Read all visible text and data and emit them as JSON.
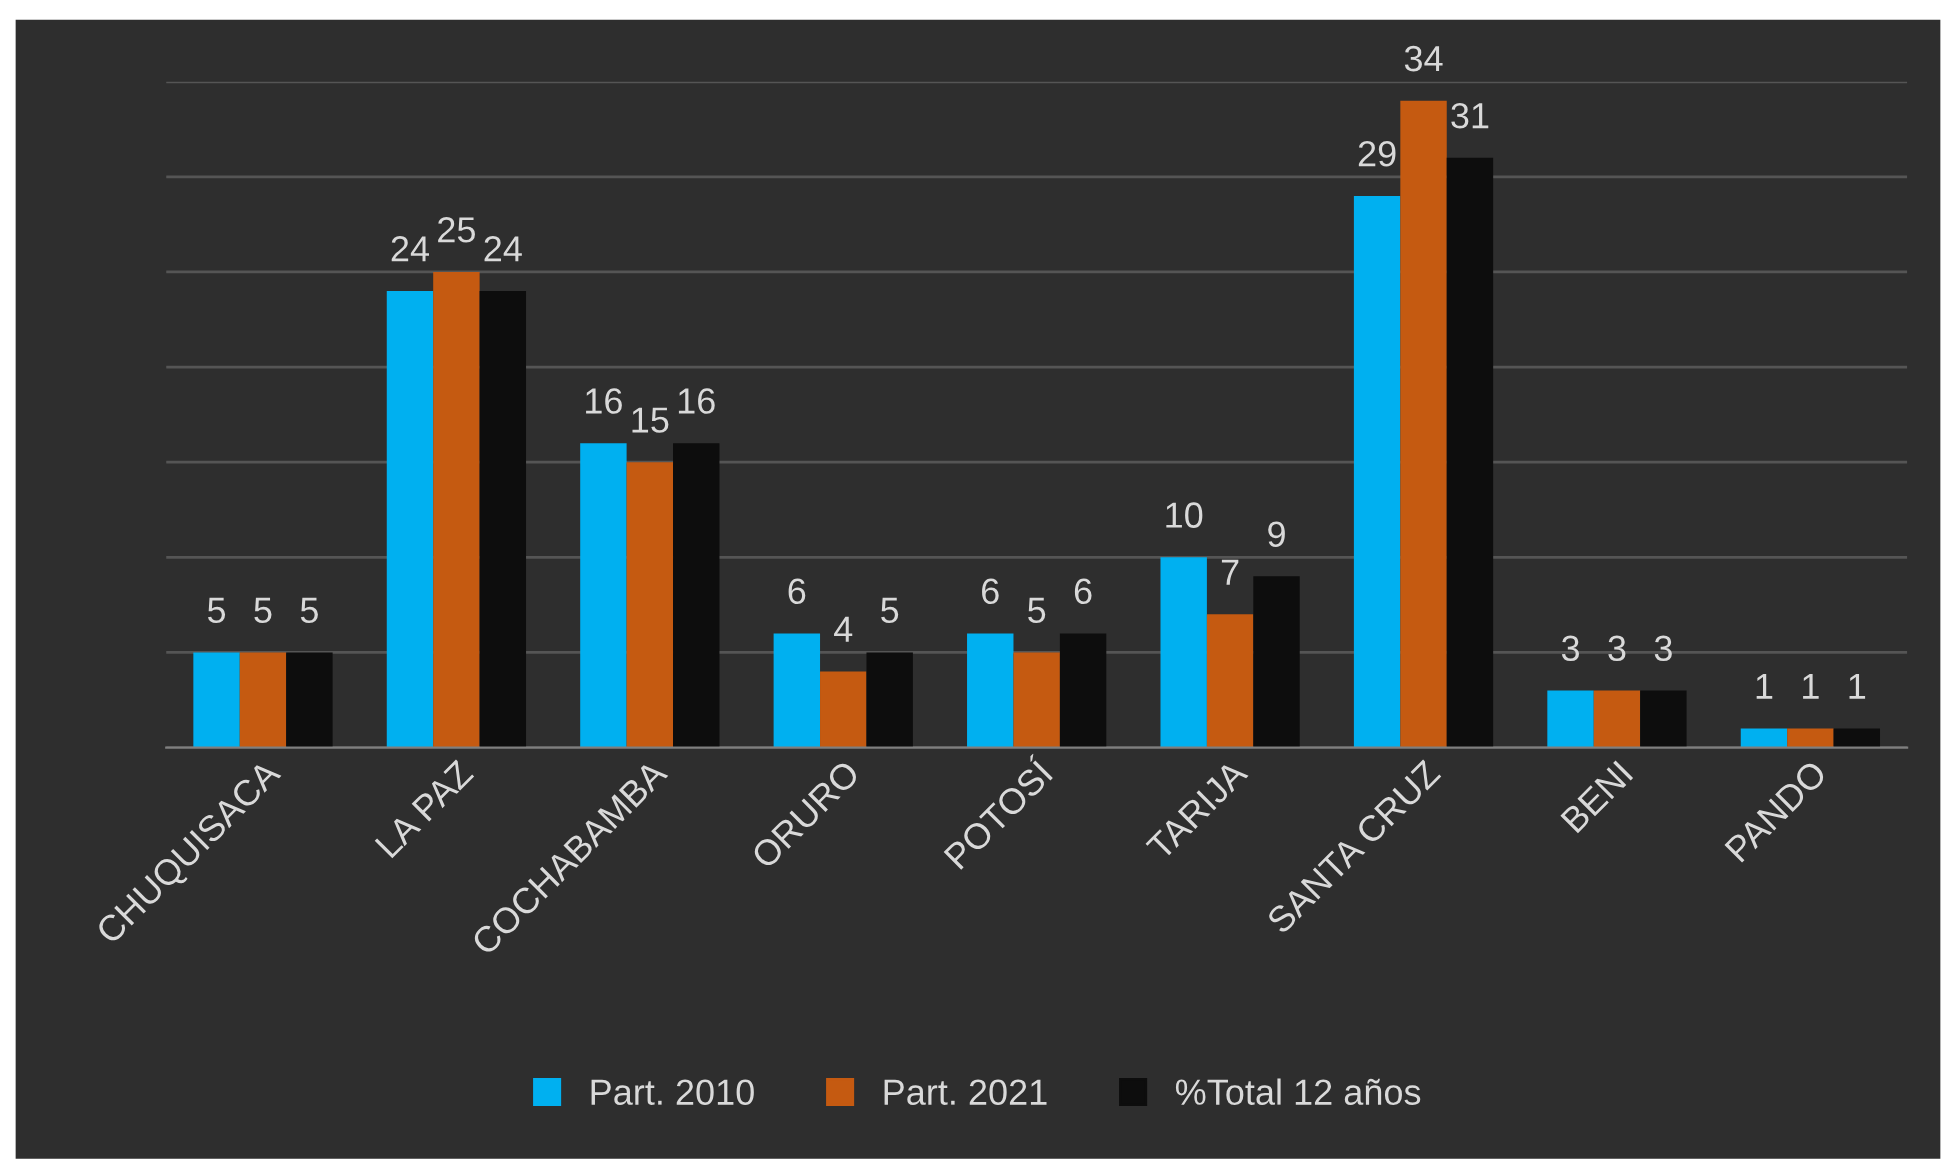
{
  "chart_data": {
    "type": "bar",
    "categories": [
      "CHUQUISACA",
      "LA PAZ",
      "COCHABAMBA",
      "ORURO",
      "POTOSÍ",
      "TARIJA",
      "SANTA CRUZ",
      "BENI",
      "PANDO"
    ],
    "series": [
      {
        "name": "Part. 2010",
        "color": "#00b0f0",
        "values": [
          5,
          24,
          16,
          6,
          6,
          10,
          29,
          3,
          1
        ]
      },
      {
        "name": "Part. 2021",
        "color": "#c55a11",
        "values": [
          5,
          25,
          15,
          4,
          5,
          7,
          34,
          3,
          1
        ]
      },
      {
        "name": "%Total 12 años",
        "color": "#0d0d0d",
        "values": [
          5,
          24,
          16,
          5,
          6,
          9,
          31,
          3,
          1
        ]
      }
    ],
    "ylim": [
      0,
      35
    ],
    "yticks": [
      {
        "value": 0,
        "label": null
      },
      {
        "value": 5,
        "label": null
      },
      {
        "value": 10,
        "label": null
      },
      {
        "value": 15,
        "label": null
      },
      {
        "value": 20,
        "label": null
      },
      {
        "value": 25,
        "label": null
      },
      {
        "value": 30,
        "label": null
      },
      {
        "value": 35,
        "label": null
      }
    ],
    "tick_labels": "x",
    "grid": "y",
    "legend": "bottom",
    "data_labels": true
  }
}
